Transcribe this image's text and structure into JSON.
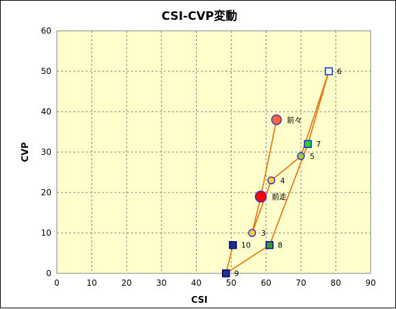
{
  "chart_data": {
    "type": "scatter",
    "title": "CSI-CVP変動",
    "xlabel": "CSI",
    "ylabel": "CVP",
    "xlim": [
      0,
      90
    ],
    "ylim": [
      0,
      60
    ],
    "xticks": [
      0,
      10,
      20,
      30,
      40,
      50,
      60,
      70,
      80,
      90
    ],
    "yticks": [
      0,
      10,
      20,
      30,
      40,
      50,
      60
    ],
    "grid": true,
    "plot_background": "#ffffcc",
    "line_color": "#ff6600",
    "points": [
      {
        "label": "前々",
        "x": 63,
        "y": 38,
        "marker": "circle",
        "fill": "#ff6633",
        "stroke": "#3333cc",
        "size": "large"
      },
      {
        "label": "前走",
        "x": 58.5,
        "y": 19,
        "marker": "circle",
        "fill": "#ff0000",
        "stroke": "#3333cc",
        "size": "xlarge"
      },
      {
        "label": "3",
        "x": 56,
        "y": 10,
        "marker": "circle",
        "fill": "#ffcc33",
        "stroke": "#3333cc",
        "size": "small"
      },
      {
        "label": "4",
        "x": 61.5,
        "y": 23,
        "marker": "circle",
        "fill": "#ffcc33",
        "stroke": "#3333cc",
        "size": "small"
      },
      {
        "label": "5",
        "x": 70,
        "y": 29,
        "marker": "circle",
        "fill": "#99cc33",
        "stroke": "#3333cc",
        "size": "small"
      },
      {
        "label": "6",
        "x": 78,
        "y": 50,
        "marker": "square",
        "fill": "#ffffff",
        "stroke": "#0033cc",
        "size": "small"
      },
      {
        "label": "7",
        "x": 72,
        "y": 32,
        "marker": "square",
        "fill": "#33cc33",
        "stroke": "#0033cc",
        "size": "small"
      },
      {
        "label": "8",
        "x": 61,
        "y": 7,
        "marker": "square",
        "fill": "#339933",
        "stroke": "#000099",
        "size": "small"
      },
      {
        "label": "9",
        "x": 48.5,
        "y": 0,
        "marker": "square",
        "fill": "#1a3399",
        "stroke": "#000066",
        "size": "small"
      },
      {
        "label": "10",
        "x": 50.5,
        "y": 7,
        "marker": "square",
        "fill": "#1a3399",
        "stroke": "#000066",
        "size": "small"
      }
    ],
    "connection_order": [
      "前々",
      "前走",
      "3",
      "4",
      "5",
      "6",
      "7",
      "8",
      "9",
      "10"
    ]
  }
}
